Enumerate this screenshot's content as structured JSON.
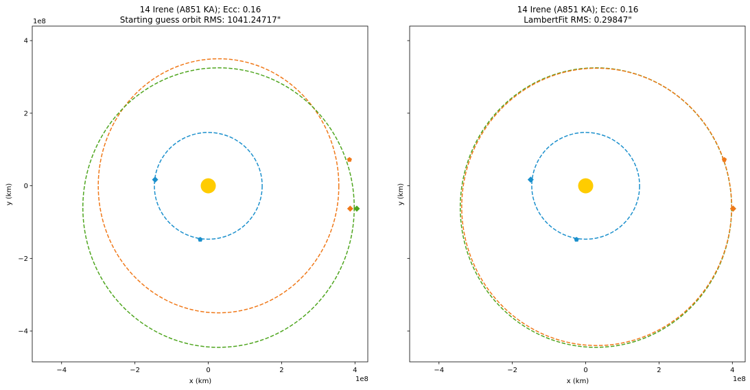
{
  "chart_data": [
    {
      "type": "scatter",
      "title_line1": "14 Irene (A851 KA); Ecc: 0.16",
      "title_line2": "Starting guess orbit RMS: 1041.24717\"",
      "xlabel": "x (km)",
      "ylabel": "y (km)",
      "xlim": [
        -4.8,
        4.35
      ],
      "ylim": [
        -4.85,
        4.4
      ],
      "x_ticks": [
        -4,
        -2,
        0,
        2,
        4
      ],
      "y_ticks": [
        -4,
        -2,
        0,
        2,
        4
      ],
      "x_tick_labels": [
        "−4",
        "−2",
        "0",
        "2",
        "4"
      ],
      "y_tick_labels": [
        "−4",
        "−2",
        "0",
        "2",
        "4"
      ],
      "x_offset_text": "1e8",
      "y_offset_text": "1e8",
      "show_y_tick_labels": true,
      "sun": {
        "x": 0,
        "y": 0,
        "color": "#ffcc00"
      },
      "orbits": [
        {
          "color": "#1a8fcc",
          "cx": 0,
          "cy": 0,
          "rx": 1.47,
          "ry": 1.47
        },
        {
          "color": "#f07818",
          "cx": 0.28,
          "cy": 0,
          "rx": 3.28,
          "ry": 3.5
        },
        {
          "color": "#4ea51e",
          "cx": 0.28,
          "cy": -0.6,
          "rx": 3.7,
          "ry": 3.85
        }
      ],
      "markers": [
        {
          "shape": "diamond",
          "color": "#1a8fcc",
          "x": -1.45,
          "y": 0.17
        },
        {
          "shape": "pentagon",
          "color": "#1a8fcc",
          "x": -0.22,
          "y": -1.48
        },
        {
          "shape": "pentagon",
          "color": "#f07818",
          "x": 3.85,
          "y": 0.72
        },
        {
          "shape": "diamond",
          "color": "#f07818",
          "x": 3.87,
          "y": -0.63
        },
        {
          "shape": "diamond",
          "color": "#4ea51e",
          "x": 4.05,
          "y": -0.63
        }
      ]
    },
    {
      "type": "scatter",
      "title_line1": "14 Irene (A851 KA); Ecc: 0.16",
      "title_line2": "LambertFit RMS: 0.29847\"",
      "xlabel": "x (km)",
      "ylabel": "y (km)",
      "xlim": [
        -4.8,
        4.35
      ],
      "ylim": [
        -4.85,
        4.4
      ],
      "x_ticks": [
        -4,
        -2,
        0,
        2,
        4
      ],
      "y_ticks": [
        -4,
        -2,
        0,
        2,
        4
      ],
      "x_tick_labels": [
        "−4",
        "−2",
        "0",
        "2",
        "4"
      ],
      "y_tick_labels": [],
      "x_offset_text": "1e8",
      "y_offset_text": "",
      "show_y_tick_labels": false,
      "sun": {
        "x": 0,
        "y": 0,
        "color": "#ffcc00"
      },
      "orbits": [
        {
          "color": "#4ea51e",
          "cx": 0.28,
          "cy": -0.6,
          "rx": 3.7,
          "ry": 3.85
        },
        {
          "color": "#f07818",
          "cx": 0.3,
          "cy": -0.58,
          "rx": 3.68,
          "ry": 3.82
        }
      ],
      "markers": [
        {
          "shape": "diamond",
          "color": "#1a8fcc",
          "x": -1.5,
          "y": 0.17
        },
        {
          "shape": "pentagon",
          "color": "#1a8fcc",
          "x": -0.25,
          "y": -1.48
        },
        {
          "shape": "pentagon",
          "color": "#f07818",
          "x": 3.78,
          "y": 0.72
        },
        {
          "shape": "diamond",
          "color": "#4ea51e",
          "x": 4.02,
          "y": -0.63
        },
        {
          "shape": "diamond",
          "color": "#f07818",
          "x": 4.02,
          "y": -0.63
        }
      ],
      "blue_orbit": {
        "color": "#1a8fcc",
        "cx": 0,
        "cy": 0,
        "rx": 1.47,
        "ry": 1.47
      }
    }
  ]
}
